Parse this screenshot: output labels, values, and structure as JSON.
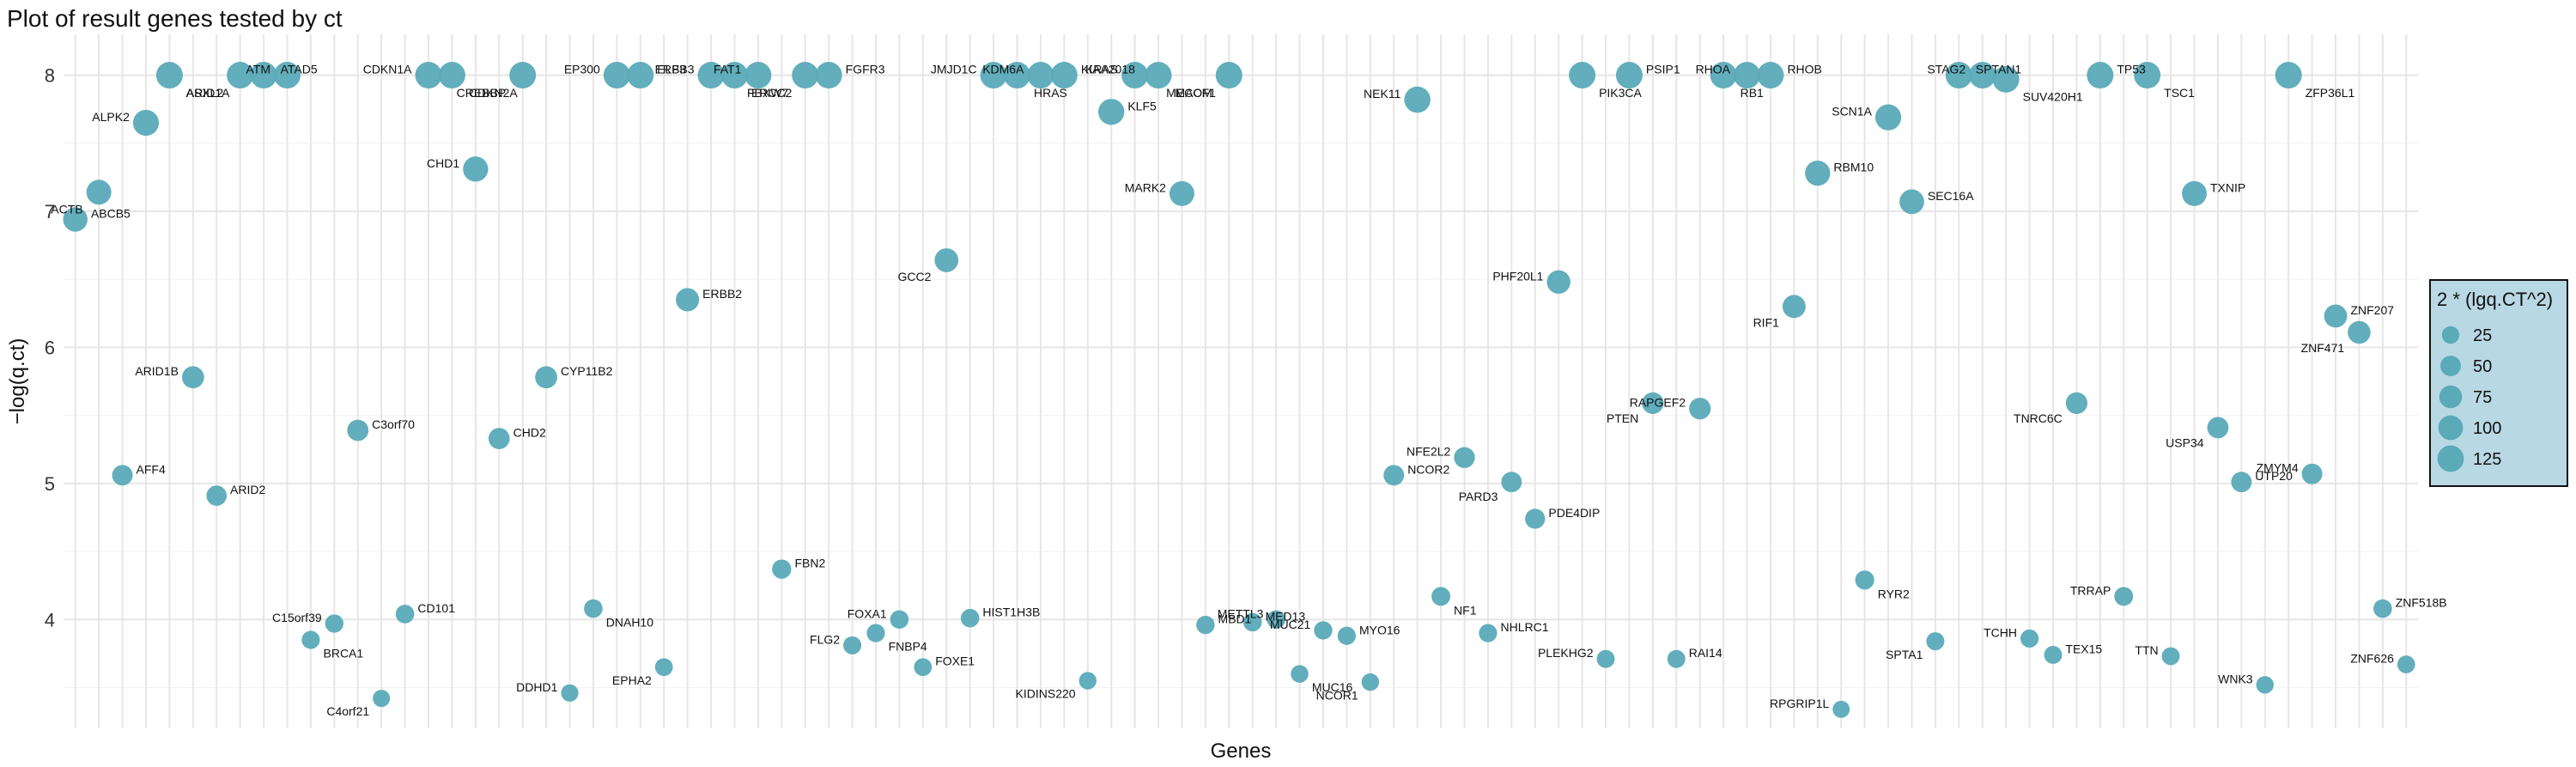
{
  "chart_data": {
    "type": "scatter",
    "title": "Plot of result genes tested by ct",
    "xlabel": "Genes",
    "ylabel": "−log(q.ct)",
    "ylim": [
      3.2,
      8.3
    ],
    "yticks": [
      4,
      5,
      6,
      7,
      8
    ],
    "grid": true,
    "legend": {
      "title": "2 * (lgq.CT^2)",
      "placement": "right",
      "sizes": [
        25,
        50,
        75,
        100,
        125
      ],
      "fill": "#b8d8e4"
    },
    "point_color": "#5aaab8",
    "categories": [
      "ABCB5",
      "ACTB",
      "AFF4",
      "ALPK2",
      "ARID1A",
      "ARID1B",
      "ARID2",
      "ASXL2",
      "ATAD5",
      "ATM",
      "BRCA1",
      "C15orf39",
      "C3orf70",
      "C4orf21",
      "CD101",
      "CDKN1A",
      "CDKN2A",
      "CHD1",
      "CHD2",
      "CREBBP",
      "CYP11B2",
      "DDHD1",
      "DNAH10",
      "EP300",
      "ELF3",
      "EPHA2",
      "ERBB2",
      "ERBB3",
      "ERCC2",
      "FAT1",
      "FBN2",
      "FBXW7",
      "FGFR3",
      "FLG2",
      "FNBP4",
      "FOXA1",
      "FOXE1",
      "GCC2",
      "HIST1H3B",
      "JMJD1C",
      "HRAS",
      "KDM6A",
      "KIAA2018",
      "KIDINS220",
      "KLF5",
      "KRAS",
      "MACF1",
      "MARK2",
      "MBD1",
      "MECOM",
      "MED13",
      "METTL3",
      "MUC16",
      "MUC21",
      "MYO16",
      "NCOR1",
      "NCOR2",
      "NEK11",
      "NF1",
      "NFE2L2",
      "NHLRC1",
      "PARD3",
      "PDE4DIP",
      "PHF20L1",
      "PIK3CA",
      "PLEKHG2",
      "PSIP1",
      "PTEN",
      "RAI14",
      "RAPGEF2",
      "RB1",
      "RHOA",
      "RHOB",
      "RIF1",
      "RBM10",
      "RPGRIP1L",
      "RYR2",
      "SCN1A",
      "SEC16A",
      "SPTA1",
      "SPTAN1",
      "STAG2",
      "SUV420H1",
      "TCHH",
      "TEX15",
      "TNRC6C",
      "TP53",
      "TRRAP",
      "TSC1",
      "TTN",
      "TXNIP",
      "USP34",
      "UTP20",
      "WNK3",
      "ZFP36L1",
      "ZMYM4",
      "ZNF207",
      "ZNF471",
      "ZNF518B",
      "ZNF626"
    ],
    "points": [
      {
        "gene": "ABCB5",
        "y": 6.94,
        "size": 96
      },
      {
        "gene": "ACTB",
        "y": 7.14,
        "size": 102
      },
      {
        "gene": "AFF4",
        "y": 5.06,
        "size": 51
      },
      {
        "gene": "ALPK2",
        "y": 7.65,
        "size": 117
      },
      {
        "gene": "ARID1A",
        "y": 8.0,
        "size": 128
      },
      {
        "gene": "ARID1B",
        "y": 5.78,
        "size": 67
      },
      {
        "gene": "ARID2",
        "y": 4.91,
        "size": 48
      },
      {
        "gene": "ASXL2",
        "y": 8.0,
        "size": 128
      },
      {
        "gene": "ATAD5",
        "y": 8.0,
        "size": 128
      },
      {
        "gene": "ATM",
        "y": 8.0,
        "size": 128
      },
      {
        "gene": "BRCA1",
        "y": 3.85,
        "size": 30
      },
      {
        "gene": "C15orf39",
        "y": 3.97,
        "size": 31
      },
      {
        "gene": "C3orf70",
        "y": 5.39,
        "size": 58
      },
      {
        "gene": "C4orf21",
        "y": 3.42,
        "size": 23
      },
      {
        "gene": "CD101",
        "y": 4.04,
        "size": 33
      },
      {
        "gene": "CDKN1A",
        "y": 8.0,
        "size": 128
      },
      {
        "gene": "CDKN2A",
        "y": 8.0,
        "size": 128
      },
      {
        "gene": "CHD1",
        "y": 7.31,
        "size": 107
      },
      {
        "gene": "CHD2",
        "y": 5.33,
        "size": 57
      },
      {
        "gene": "CREBBP",
        "y": 8.0,
        "size": 128
      },
      {
        "gene": "CYP11B2",
        "y": 5.78,
        "size": 67
      },
      {
        "gene": "DDHD1",
        "y": 3.46,
        "size": 24
      },
      {
        "gene": "DNAH10",
        "y": 4.08,
        "size": 33
      },
      {
        "gene": "EP300",
        "y": 8.0,
        "size": 128
      },
      {
        "gene": "ELF3",
        "y": 8.0,
        "size": 128
      },
      {
        "gene": "EPHA2",
        "y": 3.65,
        "size": 27
      },
      {
        "gene": "ERBB2",
        "y": 6.35,
        "size": 81
      },
      {
        "gene": "ERBB3",
        "y": 8.0,
        "size": 128
      },
      {
        "gene": "ERCC2",
        "y": 8.0,
        "size": 128
      },
      {
        "gene": "FAT1",
        "y": 8.0,
        "size": 128
      },
      {
        "gene": "FBN2",
        "y": 4.37,
        "size": 38
      },
      {
        "gene": "FBXW7",
        "y": 8.0,
        "size": 128
      },
      {
        "gene": "FGFR3",
        "y": 8.0,
        "size": 128
      },
      {
        "gene": "FLG2",
        "y": 3.81,
        "size": 29
      },
      {
        "gene": "FNBP4",
        "y": 3.9,
        "size": 30
      },
      {
        "gene": "FOXA1",
        "y": 4.0,
        "size": 32
      },
      {
        "gene": "FOXE1",
        "y": 3.65,
        "size": 27
      },
      {
        "gene": "GCC2",
        "y": 6.64,
        "size": 88
      },
      {
        "gene": "HIST1H3B",
        "y": 4.01,
        "size": 32
      },
      {
        "gene": "JMJD1C",
        "y": 8.0,
        "size": 128
      },
      {
        "gene": "HRAS",
        "y": 8.0,
        "size": 128
      },
      {
        "gene": "KDM6A",
        "y": 8.0,
        "size": 128
      },
      {
        "gene": "KIAA2018",
        "y": 8.0,
        "size": 128
      },
      {
        "gene": "KIDINS220",
        "y": 3.55,
        "size": 25
      },
      {
        "gene": "KLF5",
        "y": 7.73,
        "size": 119
      },
      {
        "gene": "KRAS",
        "y": 8.0,
        "size": 128
      },
      {
        "gene": "MACF1",
        "y": 8.0,
        "size": 128
      },
      {
        "gene": "MARK2",
        "y": 7.13,
        "size": 102
      },
      {
        "gene": "MBD1",
        "y": 3.96,
        "size": 31
      },
      {
        "gene": "MECOM",
        "y": 8.0,
        "size": 128
      },
      {
        "gene": "MED13",
        "y": 3.98,
        "size": 32
      },
      {
        "gene": "METTL3",
        "y": 4.0,
        "size": 32
      },
      {
        "gene": "MUC16",
        "y": 3.6,
        "size": 26
      },
      {
        "gene": "MUC21",
        "y": 3.92,
        "size": 31
      },
      {
        "gene": "MYO16",
        "y": 3.88,
        "size": 30
      },
      {
        "gene": "NCOR1",
        "y": 3.54,
        "size": 25
      },
      {
        "gene": "NCOR2",
        "y": 5.06,
        "size": 51
      },
      {
        "gene": "NEK11",
        "y": 7.82,
        "size": 122
      },
      {
        "gene": "NF1",
        "y": 4.17,
        "size": 35
      },
      {
        "gene": "NFE2L2",
        "y": 5.19,
        "size": 54
      },
      {
        "gene": "NHLRC1",
        "y": 3.9,
        "size": 30
      },
      {
        "gene": "PARD3",
        "y": 5.01,
        "size": 50
      },
      {
        "gene": "PDE4DIP",
        "y": 4.74,
        "size": 45
      },
      {
        "gene": "PHF20L1",
        "y": 6.48,
        "size": 84
      },
      {
        "gene": "PIK3CA",
        "y": 8.0,
        "size": 128
      },
      {
        "gene": "PLEKHG2",
        "y": 3.71,
        "size": 28
      },
      {
        "gene": "PSIP1",
        "y": 8.0,
        "size": 128
      },
      {
        "gene": "PTEN",
        "y": 5.59,
        "size": 62
      },
      {
        "gene": "RAI14",
        "y": 3.71,
        "size": 28
      },
      {
        "gene": "RAPGEF2",
        "y": 5.55,
        "size": 62
      },
      {
        "gene": "RB1",
        "y": 8.0,
        "size": 128
      },
      {
        "gene": "RHOA",
        "y": 8.0,
        "size": 128
      },
      {
        "gene": "RHOB",
        "y": 8.0,
        "size": 128
      },
      {
        "gene": "RIF1",
        "y": 6.3,
        "size": 79
      },
      {
        "gene": "RBM10",
        "y": 7.28,
        "size": 106
      },
      {
        "gene": "RPGRIP1L",
        "y": 3.34,
        "size": 22
      },
      {
        "gene": "RYR2",
        "y": 4.29,
        "size": 37
      },
      {
        "gene": "SCN1A",
        "y": 7.69,
        "size": 118
      },
      {
        "gene": "SEC16A",
        "y": 7.07,
        "size": 100
      },
      {
        "gene": "SPTA1",
        "y": 3.84,
        "size": 29
      },
      {
        "gene": "SPTAN1",
        "y": 8.0,
        "size": 128
      },
      {
        "gene": "STAG2",
        "y": 8.0,
        "size": 128
      },
      {
        "gene": "SUV420H1",
        "y": 7.97,
        "size": 127
      },
      {
        "gene": "TCHH",
        "y": 3.86,
        "size": 30
      },
      {
        "gene": "TEX15",
        "y": 3.74,
        "size": 28
      },
      {
        "gene": "TNRC6C",
        "y": 5.59,
        "size": 62
      },
      {
        "gene": "TP53",
        "y": 8.0,
        "size": 128
      },
      {
        "gene": "TRRAP",
        "y": 4.17,
        "size": 35
      },
      {
        "gene": "TSC1",
        "y": 8.0,
        "size": 128
      },
      {
        "gene": "TTN",
        "y": 3.73,
        "size": 28
      },
      {
        "gene": "TXNIP",
        "y": 7.13,
        "size": 102
      },
      {
        "gene": "USP34",
        "y": 5.41,
        "size": 58
      },
      {
        "gene": "UTP20",
        "y": 5.01,
        "size": 50
      },
      {
        "gene": "WNK3",
        "y": 3.52,
        "size": 25
      },
      {
        "gene": "ZFP36L1",
        "y": 8.0,
        "size": 128
      },
      {
        "gene": "ZMYM4",
        "y": 5.07,
        "size": 51
      },
      {
        "gene": "ZNF207",
        "y": 6.23,
        "size": 78
      },
      {
        "gene": "ZNF471",
        "y": 6.11,
        "size": 75
      },
      {
        "gene": "ZNF518B",
        "y": 4.08,
        "size": 33
      },
      {
        "gene": "ZNF626",
        "y": 3.67,
        "size": 27
      }
    ]
  }
}
